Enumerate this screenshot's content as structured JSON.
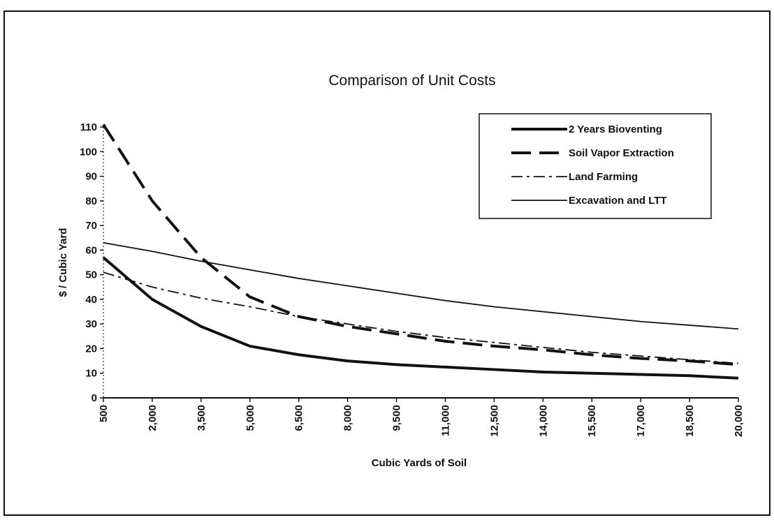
{
  "chart_data": {
    "type": "line",
    "title": "Comparison of Unit Costs",
    "xlabel": "Cubic Yards of Soil",
    "ylabel": "$ / Cubic Yard",
    "x": [
      500,
      2000,
      3500,
      5000,
      6500,
      8000,
      9500,
      11000,
      12500,
      14000,
      15500,
      17000,
      18500,
      20000
    ],
    "series": [
      {
        "name": "2 Years Bioventing",
        "color": "#111111",
        "style": "solid",
        "weight": "bold",
        "values": [
          57,
          40,
          29,
          21,
          17.5,
          15,
          13.5,
          12.5,
          11.5,
          10.5,
          10,
          9.5,
          9,
          8
        ]
      },
      {
        "name": "Soil Vapor Extraction",
        "color": "#111111",
        "style": "dashed",
        "weight": "bold",
        "values": [
          111,
          80,
          57,
          41,
          33,
          29,
          26,
          23,
          21,
          19.5,
          17.5,
          16,
          15,
          13.5
        ]
      },
      {
        "name": "Land Farming",
        "color": "#111111",
        "style": "dashdot",
        "weight": "normal",
        "values": [
          51,
          45,
          40.5,
          37,
          33,
          30,
          27,
          24.5,
          22.5,
          20.5,
          18.5,
          17,
          15.5,
          14
        ]
      },
      {
        "name": "Excavation and LTT",
        "color": "#111111",
        "style": "solid",
        "weight": "normal",
        "values": [
          63,
          59.5,
          55.5,
          52,
          48.5,
          45.5,
          42.5,
          39.5,
          37,
          35,
          33,
          31,
          29.5,
          28
        ]
      }
    ],
    "xlim": [
      500,
      20000
    ],
    "xticks": [
      500,
      {
        "value": 2000,
        "label": "2,000"
      },
      {
        "value": 3500,
        "label": "3,500"
      },
      {
        "value": 5000,
        "label": "5,000"
      },
      {
        "value": 6500,
        "label": "6,500"
      },
      {
        "value": 8000,
        "label": "8,000"
      },
      {
        "value": 9500,
        "label": "9,500"
      },
      {
        "value": 11000,
        "label": "11,000"
      },
      {
        "value": 12500,
        "label": "12,500"
      },
      {
        "value": 14000,
        "label": "14,000"
      },
      {
        "value": 15500,
        "label": "15,500"
      },
      {
        "value": 17000,
        "label": "17,000"
      },
      {
        "value": 18500,
        "label": "18,500"
      },
      {
        "value": 20000,
        "label": "20,000"
      }
    ],
    "ylim": [
      0,
      110
    ],
    "yticks": [
      0,
      10,
      20,
      30,
      40,
      50,
      60,
      70,
      80,
      90,
      100,
      110
    ],
    "grid": false,
    "legend": "upper right"
  }
}
